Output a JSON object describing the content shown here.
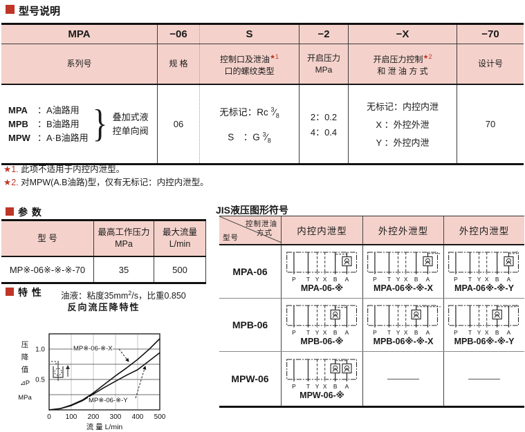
{
  "colors": {
    "accent_red": "#bf3527",
    "header_pink": "#f4d2cb"
  },
  "sections": {
    "model": "型号说明",
    "params": "参 数",
    "features": "特 性",
    "jis": "JIS液压图形符号"
  },
  "model_table": {
    "codes": [
      "MPA",
      "−06",
      "S",
      "−2",
      "−X",
      "−70"
    ],
    "header2": [
      {
        "l1": "系列号",
        "l2": "",
        "star": ""
      },
      {
        "l1": "规 格",
        "l2": "",
        "star": ""
      },
      {
        "l1": "控制口及泄油",
        "l2": "口的螺纹类型",
        "star": "★1"
      },
      {
        "l1": "开启压力",
        "l2": "MPa",
        "star": ""
      },
      {
        "l1": "开启压力控制",
        "l2": "和 泄 油 方 式",
        "star": "★2"
      },
      {
        "l1": "设计号",
        "l2": "",
        "star": ""
      }
    ],
    "body": {
      "series": [
        {
          "code": "MPA",
          "desc": "：A油路用"
        },
        {
          "code": "MPB",
          "desc": "：B油路用"
        },
        {
          "code": "MPW",
          "desc": "：A·B油路用"
        }
      ],
      "brace": "}",
      "series_note": [
        "叠加式液",
        "控单向阀"
      ],
      "size": "06",
      "threads": [
        {
          "label": "无标记：Rc",
          "num": "3",
          "den": "8"
        },
        {
          "label": "S　：G",
          "num": "3",
          "den": "8"
        }
      ],
      "pressures": [
        "2：0.2",
        "4：0.4"
      ],
      "controls": [
        "无标记：内控内泄",
        "X ：外控外泄",
        "Y ：外控内泄"
      ],
      "design": "70"
    }
  },
  "footnotes": [
    {
      "star": "★1.",
      "text": "此项不适用于内控内泄型。"
    },
    {
      "star": "★2.",
      "text": "对MPW(A.B油路)型，仅有无标记：内控内泄型。"
    }
  ],
  "params_table": {
    "headers": [
      {
        "l1": "型 号",
        "l2": ""
      },
      {
        "l1": "最高工作压力",
        "l2": "MPa"
      },
      {
        "l1": "最大流量",
        "l2": "L/min"
      }
    ],
    "row": [
      "MP※-06※-※-※-70",
      "35",
      "500"
    ]
  },
  "characteristics": {
    "oil_prefix": "油液：粘度35mm",
    "oil_sup": "2",
    "oil_suffix": "/s，比重0.850"
  },
  "chart_data": {
    "type": "line",
    "title": "反向流压降特性",
    "xlabel": "流 量 L/min",
    "ylabel_chars": [
      "压",
      "降",
      "值",
      "⊿P",
      "MPa"
    ],
    "xlim": [
      0,
      500
    ],
    "ylim": [
      0,
      1.25
    ],
    "xticks": [
      "0",
      "100",
      "200",
      "300",
      "400",
      "500"
    ],
    "yticks": [
      {
        "v": 1.0,
        "label": "1.0"
      },
      {
        "v": 0.5,
        "label": "0.5"
      }
    ],
    "grid_h": [
      0.25,
      0.5,
      0.75,
      1.0
    ],
    "grid_v": [
      100,
      200,
      300,
      400
    ],
    "x": [
      0,
      50,
      100,
      150,
      200,
      250,
      300,
      350,
      400,
      450,
      500
    ],
    "series": [
      {
        "name": "MP※-06-※-X",
        "values": [
          0,
          0.02,
          0.08,
          0.16,
          0.28,
          0.42,
          0.56,
          0.69,
          0.83,
          0.99,
          1.17
        ]
      },
      {
        "name": "MP※-06-※-Y",
        "values": [
          0,
          0.02,
          0.07,
          0.15,
          0.26,
          0.37,
          0.47,
          0.57,
          0.66,
          0.8,
          0.94
        ]
      }
    ]
  },
  "jis": {
    "corner": {
      "top": "控制泄油",
      "top2": "方式",
      "bottom": "型号"
    },
    "columns": [
      "内控内泄型",
      "外控外泄型",
      "外控内泄型"
    ],
    "ports": [
      "P",
      "T",
      "Y",
      "X",
      "B",
      "A"
    ],
    "rows": [
      {
        "model": "MPA-06",
        "cells": [
          {
            "caption": "MPA-06-※",
            "valves": [
              "A"
            ],
            "pilot": "internal"
          },
          {
            "caption": "MPA-06※-※-X",
            "valves": [
              "A"
            ],
            "pilot": "external"
          },
          {
            "caption": "MPA-06※-※-Y",
            "valves": [
              "A"
            ],
            "pilot": "external-y"
          }
        ]
      },
      {
        "model": "MPB-06",
        "cells": [
          {
            "caption": "MPB-06-※",
            "valves": [
              "B"
            ],
            "pilot": "internal"
          },
          {
            "caption": "MPB-06※-※-X",
            "valves": [
              "B"
            ],
            "pilot": "external"
          },
          {
            "caption": "MPB-06※-※-Y",
            "valves": [
              "B"
            ],
            "pilot": "external-y"
          }
        ]
      },
      {
        "model": "MPW-06",
        "cells": [
          {
            "caption": "MPW-06-※",
            "valves": [
              "B",
              "A"
            ],
            "pilot": "dual"
          },
          {
            "dash": true
          },
          {
            "dash": true
          }
        ]
      }
    ]
  }
}
